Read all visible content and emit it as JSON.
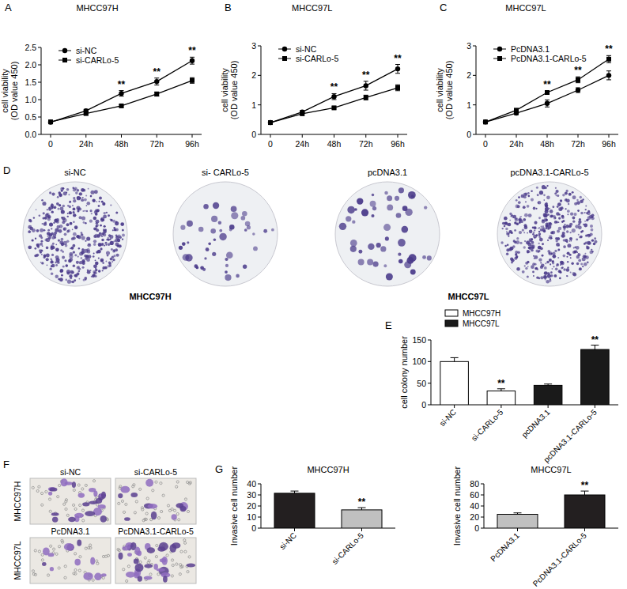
{
  "chart_data": [
    {
      "type": "line",
      "panel_label": "A",
      "title": "MHCC97H",
      "y_label": [
        "cell viability",
        "(OD value 450)"
      ],
      "categories": [
        "0",
        "24h",
        "48h",
        "72h",
        "96h"
      ],
      "series": [
        {
          "name": "si-NC",
          "color": "#000000",
          "marker": "circle",
          "values": [
            0.35,
            0.68,
            1.18,
            1.52,
            2.12
          ],
          "errors": [
            0.04,
            0.04,
            0.08,
            0.1,
            0.1
          ]
        },
        {
          "name": "si-CARLo-5",
          "color": "#000000",
          "marker": "square",
          "values": [
            0.36,
            0.6,
            0.82,
            1.16,
            1.55
          ],
          "errors": [
            0.04,
            0.04,
            0.03,
            0.06,
            0.08
          ]
        }
      ],
      "significance": [
        null,
        null,
        "**",
        "**",
        "**"
      ],
      "ylim": [
        0,
        2.5
      ],
      "yticks": [
        {
          "value": 0,
          "label": "0.0"
        },
        {
          "value": 0.5,
          "label": "0.5"
        },
        {
          "value": 1,
          "label": "1.0"
        },
        {
          "value": 1.5,
          "label": "1.5"
        },
        {
          "value": 2,
          "label": "2.0"
        },
        {
          "value": 2.5,
          "label": "2.5"
        }
      ],
      "legend": "upper left"
    },
    {
      "type": "line",
      "panel_label": "B",
      "title": "MHCC97L",
      "y_label": [
        "cell viability",
        "(OD value 450)"
      ],
      "categories": [
        "0",
        "24h",
        "48h",
        "72h",
        "96h"
      ],
      "series": [
        {
          "name": "si-NC",
          "color": "#000000",
          "marker": "circle",
          "values": [
            0.4,
            0.76,
            1.28,
            1.65,
            2.22
          ],
          "errors": [
            0.04,
            0.05,
            0.1,
            0.15,
            0.15
          ]
        },
        {
          "name": "si-CARLo-5",
          "color": "#000000",
          "marker": "square",
          "values": [
            0.4,
            0.7,
            0.9,
            1.25,
            1.58
          ],
          "errors": [
            0.04,
            0.04,
            0.04,
            0.08,
            0.1
          ]
        }
      ],
      "significance": [
        null,
        null,
        "**",
        "**",
        "**"
      ],
      "ylim": [
        0,
        3
      ],
      "yticks": [
        0,
        1,
        2,
        3
      ],
      "legend": "upper left"
    },
    {
      "type": "line",
      "panel_label": "C",
      "title": "MHCC97L",
      "y_label": [
        "cell viability",
        "(OD value 450)"
      ],
      "categories": [
        "0",
        "24h",
        "48h",
        "72h",
        "96h"
      ],
      "series": [
        {
          "name": "PcDNA3.1",
          "color": "#000000",
          "marker": "circle",
          "values": [
            0.42,
            0.72,
            1.05,
            1.5,
            2.0
          ],
          "errors": [
            0.05,
            0.05,
            0.12,
            0.08,
            0.15
          ]
        },
        {
          "name": "PcDNA3.1-CARLo-5",
          "color": "#000000",
          "marker": "square",
          "values": [
            0.42,
            0.82,
            1.42,
            1.85,
            2.55
          ],
          "errors": [
            0.05,
            0.05,
            0.05,
            0.1,
            0.12
          ]
        }
      ],
      "significance": [
        null,
        null,
        "**",
        "**",
        "**"
      ],
      "ylim": [
        0,
        3
      ],
      "yticks": [
        0,
        1,
        2,
        3
      ],
      "legend": "upper left"
    },
    {
      "type": "bar",
      "panel_label": "E",
      "y_label": "cell colony number",
      "categories": [
        "si-NC",
        "si-CARLo-5",
        "pcDNA3.1",
        "pcDNA3.1-CARLo-5"
      ],
      "series": [
        {
          "name": "MHCC97H",
          "color": "#ffffff",
          "values": [
            100,
            32,
            null,
            null
          ],
          "errors": [
            9,
            5,
            null,
            null
          ]
        },
        {
          "name": "MHCC97L",
          "color": "#1a1a1a",
          "values": [
            null,
            null,
            45,
            128
          ],
          "errors": [
            null,
            null,
            3,
            10
          ]
        }
      ],
      "significance": [
        null,
        "**",
        null,
        "**"
      ],
      "ylim": [
        0,
        150
      ],
      "yticks": [
        0,
        50,
        100,
        150
      ],
      "legend": "top"
    },
    {
      "type": "bar",
      "panel_label": "G",
      "title": "MHCC97H",
      "y_label": "Invasive cell number",
      "categories": [
        "si-NC",
        "si-CARLo-5"
      ],
      "values": [
        31.5,
        16.5
      ],
      "errors": [
        2,
        2
      ],
      "colors": [
        "#231f20",
        "#c0c0c0"
      ],
      "significance": [
        null,
        "**"
      ],
      "ylim": [
        0,
        40
      ],
      "yticks": [
        0,
        10,
        20,
        30,
        40
      ]
    },
    {
      "type": "bar",
      "title": "MHCC97L",
      "y_label": "Invasive cell number",
      "categories": [
        "PcDNA3.1",
        "PcDNA3.1-CARLo-5"
      ],
      "values": [
        25,
        60
      ],
      "errors": [
        2.5,
        7
      ],
      "colors": [
        "#c0c0c0",
        "#231f20"
      ],
      "significance": [
        null,
        "**"
      ],
      "ylim": [
        0,
        80
      ],
      "yticks": [
        0,
        20,
        40,
        60,
        80
      ]
    }
  ],
  "photo_panels": [
    {
      "panel_label": "D",
      "images": [
        "si-NC",
        "si- CARLo-5",
        "pcDNA3.1",
        "pcDNA3.1-CARLo-5"
      ],
      "groups": [
        "MHCC97H",
        "MHCC97L"
      ]
    },
    {
      "panel_label": "F",
      "rows": [
        {
          "label": "MHCC97H",
          "images": [
            "si-NC",
            "si-CARLo-5"
          ]
        },
        {
          "label": "MHCC97L",
          "images": [
            "PcDNA3.1",
            "PcDNA3.1-CARLo-5"
          ]
        }
      ]
    }
  ]
}
